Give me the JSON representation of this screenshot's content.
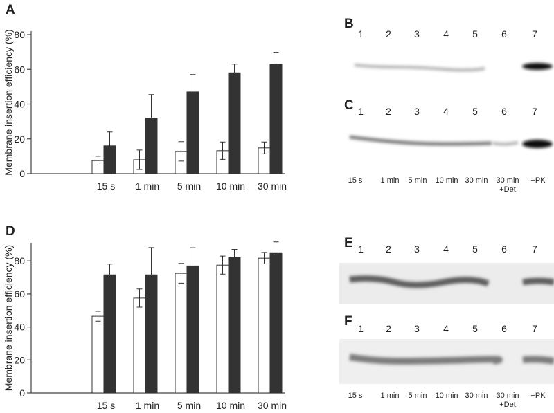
{
  "chart_data": [
    {
      "type": "bar",
      "panel": "A",
      "y_label": "Membrane insertion efficiency (%)",
      "categories": [
        "15 s",
        "1 min",
        "5 min",
        "10 min",
        "30 min"
      ],
      "series": [
        {
          "color": "#ffffff",
          "values": [
            7.5,
            8,
            12.8,
            13.2,
            14.8
          ],
          "errors": [
            2.5,
            5.6,
            5.6,
            5,
            3.4
          ]
        },
        {
          "color": "#333333",
          "values": [
            16,
            32,
            47,
            58,
            63
          ],
          "errors": [
            8,
            13.5,
            10,
            5,
            6.8
          ]
        }
      ],
      "ylim": [
        0,
        82
      ],
      "yticks": [
        0,
        20,
        40,
        60,
        80
      ]
    },
    {
      "type": "bar",
      "panel": "D",
      "y_label": "Membrane insertion efficiency (%)",
      "categories": [
        "15 s",
        "1 min",
        "5 min",
        "10 min",
        "30 min"
      ],
      "series": [
        {
          "color": "#ffffff",
          "values": [
            46.5,
            57.5,
            72.5,
            77.5,
            81.7
          ],
          "errors": [
            3,
            5.5,
            6,
            5.5,
            3.5
          ]
        },
        {
          "color": "#333333",
          "values": [
            71.6,
            71.6,
            77,
            82,
            85
          ],
          "errors": [
            6.5,
            16.5,
            11,
            5,
            6.5
          ]
        }
      ],
      "ylim": [
        0,
        91
      ],
      "yticks": [
        0,
        20,
        40,
        60,
        80
      ]
    }
  ],
  "blots": [
    {
      "label": "B",
      "lanes": [
        "1",
        "2",
        "3",
        "4",
        "5",
        "6",
        "7"
      ]
    },
    {
      "label": "C",
      "lanes": [
        "1",
        "2",
        "3",
        "4",
        "5",
        "6",
        "7"
      ],
      "captions": [
        [
          "15 s"
        ],
        [
          "1 min"
        ],
        [
          "5 min"
        ],
        [
          "10 min"
        ],
        [
          "30 min"
        ],
        [
          "30 min",
          "+Det"
        ],
        [
          "−PK"
        ]
      ]
    },
    {
      "label": "E",
      "lanes": [
        "1",
        "2",
        "3",
        "4",
        "5",
        "6",
        "7"
      ]
    },
    {
      "label": "F",
      "lanes": [
        "1",
        "2",
        "3",
        "4",
        "5",
        "6",
        "7"
      ],
      "captions": [
        [
          "15 s"
        ],
        [
          "1 min"
        ],
        [
          "5 min"
        ],
        [
          "10 min"
        ],
        [
          "30 min"
        ],
        [
          "30 min",
          "+Det"
        ],
        [
          "−PK"
        ]
      ]
    }
  ]
}
